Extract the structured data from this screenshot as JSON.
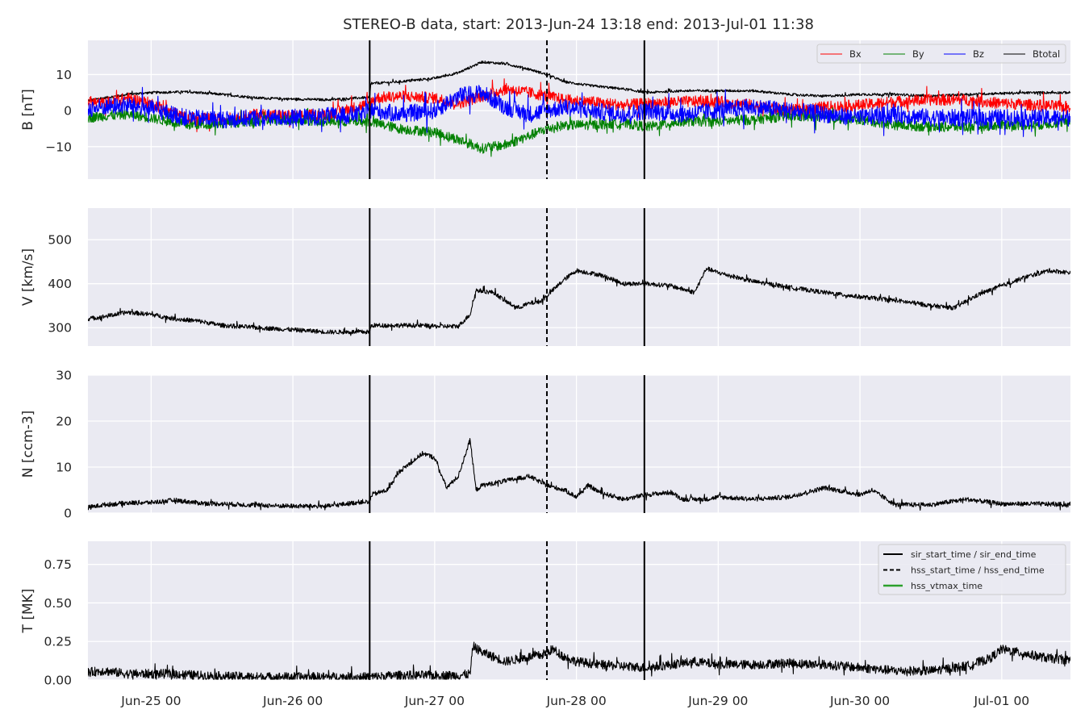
{
  "title": "STEREO-B data, start: 2013-Jun-24 13:18  end: 2013-Jul-01 11:38",
  "colors": {
    "panel_bg": "#eaeaf2",
    "grid": "#ffffff",
    "text": "#262626",
    "Bx": "#ff0000",
    "By": "#008000",
    "Bz": "#0000ff",
    "Btotal": "#000000",
    "hss_vtmax": "#2ca02c"
  },
  "x_ticks": [
    "Jun-25 00",
    "Jun-26 00",
    "Jun-27 00",
    "Jun-28 00",
    "Jun-29 00",
    "Jun-30 00",
    "Jul-01 00"
  ],
  "chart_data": {
    "type": "line",
    "x_unit": "hours since 2013-Jun-24 00:00",
    "xlim": [
      13.3,
      179.63
    ],
    "x_tick_values": [
      24,
      48,
      72,
      96,
      120,
      144,
      168
    ],
    "event_lines": {
      "sir_start_time": 61.0,
      "hss_start_time": 91.0,
      "sir_end_time": 107.5
    },
    "panels": [
      {
        "ylabel": "B [nT]",
        "ylim": [
          -19,
          19.5
        ],
        "yticks": [
          -10,
          0,
          10
        ],
        "ytick_labels": [
          "−10",
          "0",
          "10"
        ],
        "legend": [
          "Bx",
          "By",
          "Bz",
          "Btotal"
        ],
        "series": [
          {
            "name": "Btotal",
            "color": "#000000",
            "noise": 0.35,
            "x": [
              13.3,
              16,
              20,
              24,
              30,
              36,
              42,
              48,
              54,
              60,
              61,
              61.2,
              66,
              72,
              76,
              80,
              84,
              88,
              91,
              94,
              98,
              104,
              108,
              114,
              120,
              126,
              132,
              138,
              144,
              150,
              156,
              162,
              168,
              174,
              179.6
            ],
            "y": [
              2.8,
              3.5,
              4.5,
              5,
              5.2,
              4.5,
              3.5,
              3.2,
              3,
              3.6,
              3.5,
              7.5,
              8,
              9,
              10.5,
              13.5,
              13,
              11.5,
              10,
              8,
              7,
              6,
              5,
              5.5,
              5.5,
              5.5,
              4.5,
              4,
              4.5,
              4.5,
              4,
              4.5,
              4.8,
              5,
              5
            ]
          },
          {
            "name": "Bx",
            "color": "#ff0000",
            "noise": 1.6,
            "x": [
              13.3,
              16,
              20,
              24,
              30,
              36,
              42,
              48,
              54,
              60,
              61,
              62,
              66,
              72,
              76,
              80,
              84,
              88,
              91,
              94,
              98,
              104,
              108,
              114,
              120,
              126,
              132,
              138,
              144,
              150,
              156,
              162,
              168,
              174,
              179.6
            ],
            "y": [
              2.5,
              2,
              3.5,
              2,
              -2,
              -2.5,
              -1,
              -1.5,
              -1,
              1.5,
              2,
              3.5,
              4,
              3.5,
              2,
              4,
              6,
              5,
              4,
              3,
              2.5,
              1.5,
              2,
              2.5,
              2.5,
              1.5,
              0,
              1,
              1.5,
              2.5,
              3,
              3,
              2,
              1.5,
              1
            ]
          },
          {
            "name": "By",
            "color": "#008000",
            "noise": 1.4,
            "x": [
              13.3,
              16,
              20,
              24,
              30,
              36,
              42,
              48,
              54,
              60,
              61,
              62,
              66,
              72,
              76,
              80,
              84,
              88,
              91,
              94,
              98,
              104,
              108,
              114,
              120,
              126,
              132,
              138,
              144,
              150,
              156,
              162,
              168,
              174,
              179.6
            ],
            "y": [
              -2,
              -1.5,
              -1,
              -2,
              -4,
              -3.5,
              -3,
              -2.5,
              -3,
              -3,
              -3,
              -3.5,
              -5,
              -6,
              -8,
              -10.5,
              -9.5,
              -7,
              -5,
              -4,
              -4,
              -3.5,
              -4.5,
              -3,
              -3,
              -2.5,
              -1.5,
              -2,
              -2.5,
              -4,
              -4.5,
              -4.5,
              -4,
              -4,
              -3
            ]
          },
          {
            "name": "Bz",
            "color": "#0000ff",
            "noise": 2.4,
            "x": [
              13.3,
              16,
              20,
              24,
              30,
              36,
              42,
              48,
              54,
              60,
              61,
              62,
              66,
              72,
              76,
              80,
              84,
              88,
              91,
              94,
              98,
              104,
              108,
              114,
              120,
              126,
              132,
              138,
              144,
              150,
              156,
              162,
              168,
              174,
              179.6
            ],
            "y": [
              0.5,
              1,
              1.5,
              0.5,
              -2,
              -2.5,
              -2,
              -2,
              -1.5,
              -1,
              0,
              0,
              -1,
              0,
              4,
              5,
              1,
              -1,
              0,
              1,
              0,
              -1,
              0,
              -1,
              0,
              1,
              0,
              -1,
              -2,
              -1,
              -2,
              -2,
              -2,
              -2,
              -2
            ]
          }
        ]
      },
      {
        "ylabel": "V [km/s]",
        "ylim": [
          258,
          572
        ],
        "yticks": [
          300,
          400,
          500
        ],
        "ytick_labels": [
          "300",
          "400",
          "500"
        ],
        "series": [
          {
            "name": "V",
            "color": "#000000",
            "noise": 5,
            "x": [
              13.3,
              16,
              20,
              24,
              28,
              32,
              36,
              42,
              48,
              54,
              60,
              61,
              61.3,
              66,
              70,
              72,
              76,
              78,
              79,
              82,
              84,
              86,
              88,
              90,
              92,
              94,
              96,
              100,
              104,
              108,
              112,
              116,
              118,
              120,
              126,
              132,
              138,
              144,
              150,
              156,
              160,
              164,
              168,
              172,
              176,
              179.6
            ],
            "y": [
              320,
              325,
              335,
              330,
              320,
              315,
              305,
              300,
              295,
              290,
              290,
              290,
              305,
              305,
              305,
              303,
              303,
              330,
              385,
              380,
              360,
              345,
              355,
              360,
              385,
              410,
              430,
              420,
              400,
              400,
              395,
              380,
              435,
              425,
              405,
              392,
              380,
              370,
              362,
              350,
              345,
              375,
              395,
              415,
              430,
              425
            ]
          }
        ]
      },
      {
        "ylabel": "N [ccm-3]",
        "ylim": [
          0,
          30
        ],
        "yticks": [
          0,
          10,
          20,
          30
        ],
        "ytick_labels": [
          "0",
          "10",
          "20",
          "30"
        ],
        "series": [
          {
            "name": "N",
            "color": "#000000",
            "noise": 0.5,
            "x": [
              13.3,
              16,
              20,
              24,
              28,
              32,
              36,
              42,
              48,
              54,
              60,
              61,
              61.3,
              64,
              66,
              68,
              70,
              72,
              74,
              76,
              77,
              78,
              79,
              80,
              84,
              88,
              91,
              94,
              96,
              98,
              100,
              104,
              108,
              112,
              114,
              118,
              120,
              126,
              132,
              138,
              144,
              146,
              150,
              156,
              162,
              168,
              174,
              179.6
            ],
            "y": [
              1.2,
              1.8,
              2.2,
              2.3,
              2.8,
              2.2,
              2,
              1.7,
              1.5,
              1.5,
              2.5,
              2.2,
              4,
              5,
              9,
              11,
              13,
              12,
              5.5,
              8,
              12,
              16,
              5,
              6,
              7,
              8,
              6,
              5,
              3.5,
              6,
              4.5,
              3,
              4,
              4.5,
              3,
              3,
              3.5,
              3,
              3.5,
              5.5,
              4,
              5,
              1.8,
              1.8,
              3,
              2,
              2,
              1.8
            ]
          }
        ]
      },
      {
        "ylabel": "T [MK]",
        "ylim": [
          0,
          0.9
        ],
        "yticks": [
          0,
          0.25,
          0.5,
          0.75
        ],
        "ytick_labels": [
          "0.00",
          "0.25",
          "0.50",
          "0.75"
        ],
        "legend": [
          "sir_start_time / sir_end_time",
          "hss_start_time / hss_end_time",
          "hss_vtmax_time"
        ],
        "series": [
          {
            "name": "T",
            "color": "#000000",
            "noise": 0.03,
            "x": [
              13.3,
              16,
              20,
              24,
              28,
              32,
              36,
              42,
              48,
              54,
              60,
              61,
              66,
              72,
              76,
              78,
              78.5,
              80,
              84,
              88,
              90,
              92,
              94,
              96,
              100,
              104,
              108,
              112,
              116,
              120,
              126,
              132,
              138,
              144,
              150,
              156,
              162,
              166,
              168,
              172,
              176,
              179.6
            ],
            "y": [
              0.05,
              0.06,
              0.04,
              0.04,
              0.04,
              0.03,
              0.025,
              0.02,
              0.02,
              0.02,
              0.02,
              0.02,
              0.03,
              0.03,
              0.03,
              0.04,
              0.22,
              0.18,
              0.12,
              0.15,
              0.16,
              0.2,
              0.15,
              0.12,
              0.1,
              0.09,
              0.08,
              0.1,
              0.12,
              0.1,
              0.1,
              0.11,
              0.1,
              0.08,
              0.06,
              0.06,
              0.09,
              0.14,
              0.2,
              0.17,
              0.14,
              0.13
            ]
          }
        ]
      }
    ]
  }
}
